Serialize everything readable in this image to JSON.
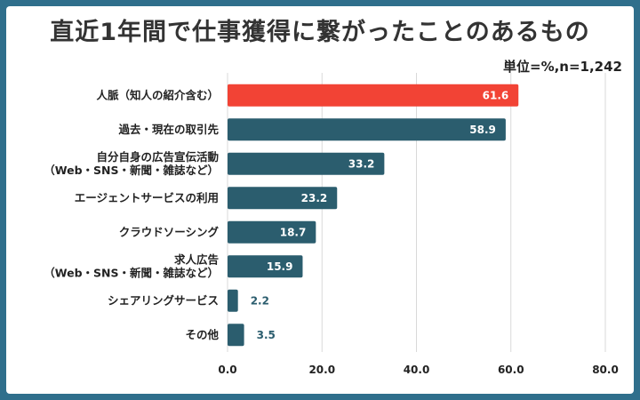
{
  "chart_data": {
    "type": "bar",
    "orientation": "horizontal",
    "title": "直近1年間で仕事獲得に繋がったことのあるもの",
    "note": "単位=%,n=1,242",
    "categories": [
      [
        "人脈（知人の紹介含む）"
      ],
      [
        "過去・現在の取引先"
      ],
      [
        "自分自身の広告宣伝活動",
        "（Web・SNS・新聞・雑誌など）"
      ],
      [
        "エージェントサービスの利用"
      ],
      [
        "クラウドソーシング"
      ],
      [
        "求人広告",
        "（Web・SNS・新聞・雑誌など）"
      ],
      [
        "シェアリングサービス"
      ],
      [
        "その他"
      ]
    ],
    "values": [
      61.6,
      58.9,
      33.2,
      23.2,
      18.7,
      15.9,
      2.2,
      3.5
    ],
    "value_labels": [
      "61.6",
      "58.9",
      "33.2",
      "23.2",
      "18.7",
      "15.9",
      "2.2",
      "3.5"
    ],
    "xlim": [
      0,
      80
    ],
    "xticks": [
      0,
      20,
      40,
      60,
      80
    ],
    "xtick_labels": [
      "0.0",
      "20.0",
      "40.0",
      "60.0",
      "80.0"
    ],
    "grid": true,
    "colors": {
      "highlight": "#f24335",
      "bar": "#2b5d6e",
      "grid": "#d9d9d9",
      "frame": "#2f6f8c"
    },
    "highlight_index": 0
  }
}
